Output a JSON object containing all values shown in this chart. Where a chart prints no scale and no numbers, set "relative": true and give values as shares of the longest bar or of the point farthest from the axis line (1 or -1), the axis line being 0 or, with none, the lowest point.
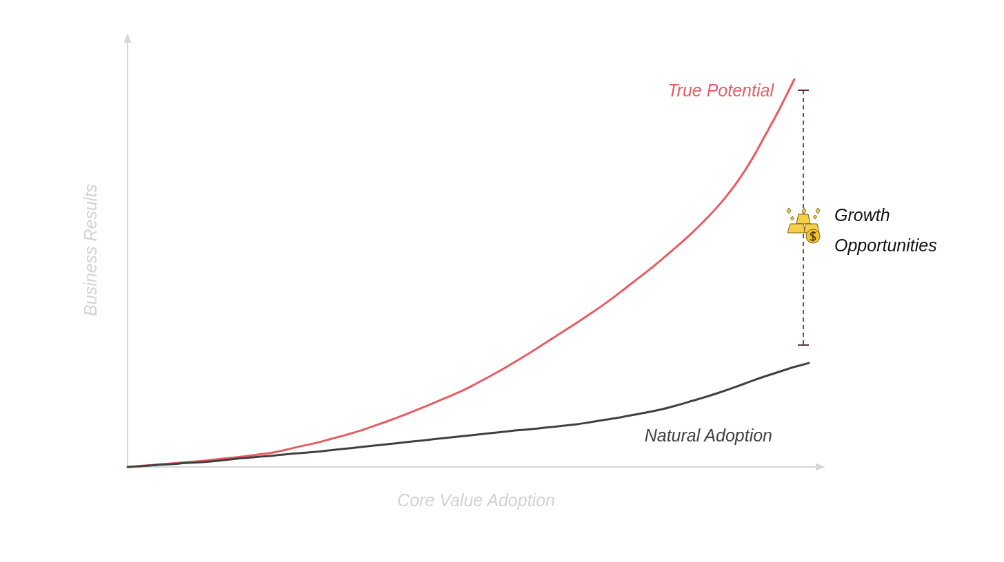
{
  "chart_data": {
    "type": "line",
    "relative": true,
    "xlabel": "Core Value Adoption",
    "ylabel": "Business Results",
    "categories": [
      null,
      null,
      null,
      null,
      null,
      null,
      null,
      null,
      null,
      null,
      null,
      null,
      null,
      null,
      null,
      null,
      null,
      null,
      null,
      null,
      null,
      null,
      null,
      null,
      null,
      null,
      null,
      null,
      null,
      null,
      null,
      null,
      null,
      null,
      null,
      null,
      null,
      null,
      null,
      null,
      null,
      null,
      null,
      null,
      null,
      null,
      null,
      null
    ],
    "series": [
      {
        "name": "True Potential",
        "color": "#e95a61",
        "values": [
          0,
          0.003,
          0.006,
          0.009,
          0.012,
          0.015,
          0.019,
          0.023,
          0.027,
          0.032,
          0.037,
          0.045,
          0.054,
          0.062,
          0.072,
          0.082,
          0.093,
          0.106,
          0.119,
          0.133,
          0.148,
          0.163,
          0.179,
          0.195,
          0.214,
          0.234,
          0.255,
          0.277,
          0.3,
          0.324,
          0.348,
          0.372,
          0.397,
          0.423,
          0.451,
          0.48,
          0.509,
          0.54,
          0.572,
          0.606,
          0.643,
          0.684,
          0.732,
          0.789,
          0.856,
          0.925,
          1,
          null
        ]
      },
      {
        "name": "Natural Adoption",
        "color": "#404040",
        "values": [
          0,
          0.002,
          0.005,
          0.007,
          0.01,
          0.012,
          0.015,
          0.019,
          0.023,
          0.026,
          0.029,
          0.033,
          0.036,
          0.039,
          0.043,
          0.047,
          0.051,
          0.055,
          0.059,
          0.063,
          0.067,
          0.071,
          0.075,
          0.079,
          0.083,
          0.087,
          0.091,
          0.095,
          0.098,
          0.102,
          0.106,
          0.11,
          0.116,
          0.122,
          0.128,
          0.135,
          0.142,
          0.15,
          0.16,
          0.171,
          0.182,
          0.194,
          0.207,
          0.221,
          0.234,
          0.246,
          0.258,
          0.268
        ]
      }
    ],
    "annotations": [
      "Growth Opportunities"
    ]
  }
}
